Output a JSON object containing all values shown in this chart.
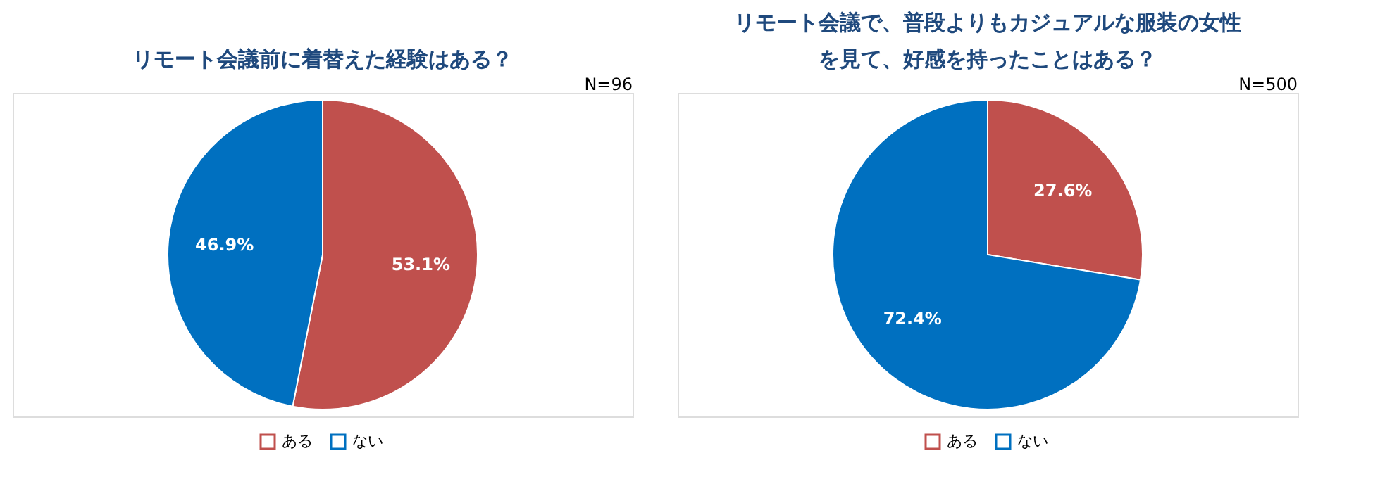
{
  "chart_data": [
    {
      "type": "pie",
      "title": "リモート会議前に着替えた経験はある？",
      "annotations": [
        "N=96"
      ],
      "categories": [
        "ある",
        "ない"
      ],
      "values": [
        53.1,
        46.9
      ],
      "colors": [
        "#c0504d",
        "#0070c0"
      ],
      "value_labels": [
        "53.1%",
        "46.9%"
      ],
      "legend": "bottom"
    },
    {
      "type": "pie",
      "title": "リモート会議で、普段よりもカジュアルな服装の女性を見て、好感を持ったことはある？",
      "annotations": [
        "N=500"
      ],
      "categories": [
        "ある",
        "ない"
      ],
      "values": [
        27.6,
        72.4
      ],
      "colors": [
        "#c0504d",
        "#0070c0"
      ],
      "value_labels": [
        "27.6%",
        "72.4%"
      ],
      "legend": "bottom"
    }
  ]
}
